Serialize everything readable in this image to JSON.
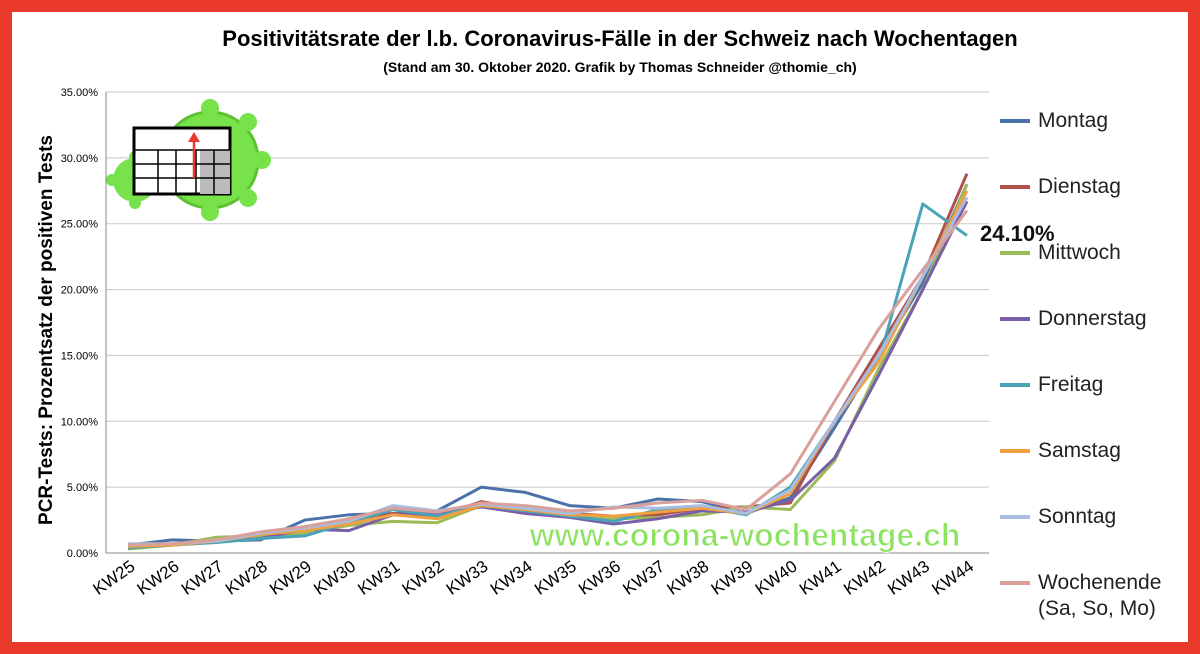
{
  "chart_data": {
    "type": "line",
    "title": "Positivitätsrate der l.b. Coronavirus-Fälle in der Schweiz nach Wochentagen",
    "subtitle": "(Stand am 30. Oktober 2020. Grafik by Thomas Schneider @thomie_ch)",
    "y_label": "PCR-Tests: Prozentsatz der positiven Tests",
    "annotation": "24.10%",
    "watermark": "www.corona-wochentage.ch",
    "categories": [
      "KW25",
      "KW26",
      "KW27",
      "KW28",
      "KW29",
      "KW30",
      "KW31",
      "KW32",
      "KW33",
      "KW34",
      "KW35",
      "KW36",
      "KW37",
      "KW38",
      "KW39",
      "KW40",
      "KW41",
      "KW42",
      "KW43",
      "KW44"
    ],
    "ylim": [
      0,
      35
    ],
    "yticks": [
      {
        "value": 0,
        "label": "0.00%"
      },
      {
        "value": 5,
        "label": "5.00%"
      },
      {
        "value": 10,
        "label": "10.00%"
      },
      {
        "value": 15,
        "label": "15.00%"
      },
      {
        "value": 20,
        "label": "20.00%"
      },
      {
        "value": 25,
        "label": "25.00%"
      },
      {
        "value": 30,
        "label": "30.00%"
      },
      {
        "value": 35,
        "label": "35.00%"
      }
    ],
    "grid": true,
    "legend": "right",
    "series": [
      {
        "name": "Montag",
        "color": "#4a72a8",
        "values": [
          0.6,
          1.0,
          0.9,
          1.0,
          2.5,
          2.9,
          3.0,
          3.2,
          5.0,
          4.6,
          3.6,
          3.4,
          4.1,
          3.9,
          3.0,
          4.2,
          9.5,
          15.0,
          20.5,
          28.0
        ]
      },
      {
        "name": "Dienstag",
        "color": "#b0504c",
        "values": [
          0.5,
          0.6,
          0.9,
          1.3,
          1.7,
          2.2,
          3.0,
          2.8,
          3.9,
          3.3,
          3.0,
          2.8,
          2.9,
          3.4,
          3.5,
          3.8,
          10.0,
          15.5,
          21.0,
          28.8
        ]
      },
      {
        "name": "Mittwoch",
        "color": "#9bbb59",
        "values": [
          0.3,
          0.6,
          1.2,
          1.3,
          1.5,
          2.1,
          2.4,
          2.3,
          3.6,
          3.1,
          2.9,
          2.6,
          2.7,
          2.9,
          3.5,
          3.3,
          7.0,
          14.0,
          20.0,
          28.0
        ]
      },
      {
        "name": "Donnerstag",
        "color": "#7a5ea8",
        "values": [
          0.4,
          0.7,
          0.9,
          1.1,
          1.8,
          1.7,
          2.9,
          3.0,
          3.5,
          3.0,
          2.7,
          2.2,
          2.6,
          3.2,
          3.1,
          4.0,
          7.2,
          13.5,
          20.0,
          26.7
        ]
      },
      {
        "name": "Freitag",
        "color": "#4ba3b8",
        "values": [
          0.4,
          0.6,
          0.8,
          1.1,
          1.3,
          2.3,
          3.3,
          2.8,
          3.6,
          3.2,
          2.8,
          2.4,
          3.3,
          3.5,
          2.9,
          5.0,
          10.0,
          14.5,
          26.5,
          24.1
        ]
      },
      {
        "name": "Samstag",
        "color": "#f0a040",
        "values": [
          0.5,
          0.6,
          0.9,
          1.4,
          1.7,
          2.2,
          2.9,
          2.6,
          3.6,
          3.3,
          2.9,
          2.8,
          3.1,
          3.4,
          3.0,
          4.5,
          10.0,
          14.5,
          21.0,
          27.5
        ]
      },
      {
        "name": "Sonntag",
        "color": "#a8bde0",
        "values": [
          0.7,
          0.7,
          0.9,
          1.5,
          1.9,
          2.4,
          3.6,
          3.2,
          3.7,
          3.4,
          3.0,
          3.5,
          3.4,
          3.6,
          3.0,
          4.8,
          10.0,
          15.0,
          21.0,
          27.0
        ]
      },
      {
        "name": "Wochenende (Sa, So, Mo)",
        "color": "#d9a09c",
        "values": [
          0.6,
          0.7,
          1.0,
          1.6,
          2.0,
          2.6,
          3.4,
          3.1,
          3.8,
          3.6,
          3.2,
          3.4,
          3.8,
          4.0,
          3.3,
          6.0,
          11.5,
          17.0,
          21.5,
          26.0
        ]
      }
    ]
  }
}
